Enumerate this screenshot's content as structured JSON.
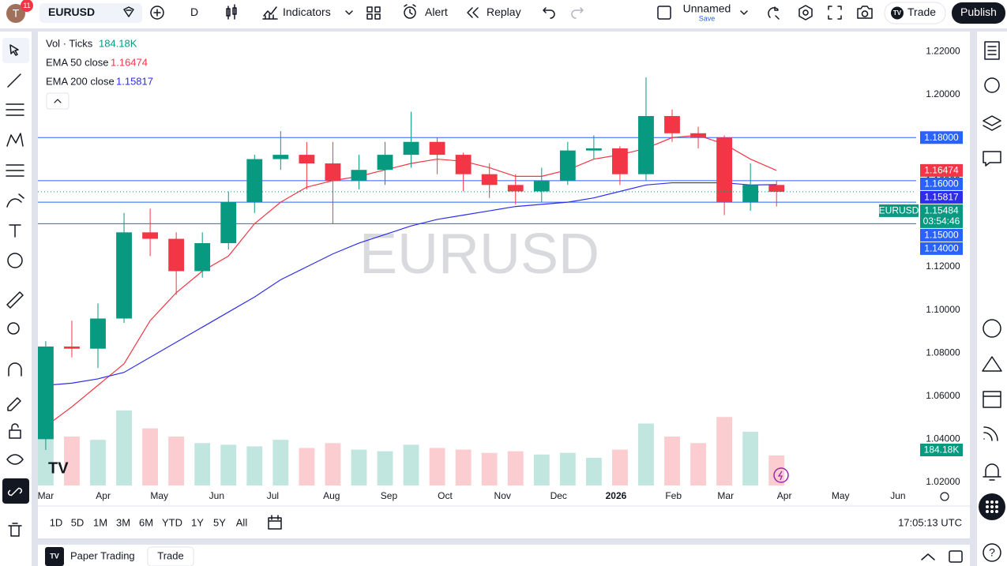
{
  "toolbar": {
    "avatar": "T",
    "notifications": "11",
    "symbol": "EURUSD",
    "interval": "D",
    "indicators": "Indicators",
    "alert": "Alert",
    "replay": "Replay",
    "layout_name": "Unnamed",
    "save": "Save",
    "trade": "Trade",
    "publish": "Publish"
  },
  "chart_data": {
    "type": "candlestick",
    "watermark": "EURUSD",
    "xlim": [
      -0.6,
      66.7
    ],
    "xticks": [
      {
        "value": 0,
        "label": "Mar"
      },
      {
        "value": 4.4,
        "label": "Apr"
      },
      {
        "value": 8.7,
        "label": "May"
      },
      {
        "value": 13.1,
        "label": "Jun"
      },
      {
        "value": 17.4,
        "label": "Jul"
      },
      {
        "value": 21.9,
        "label": "Aug"
      },
      {
        "value": 26.3,
        "label": "Sep"
      },
      {
        "value": 30.6,
        "label": "Oct"
      },
      {
        "value": 35,
        "label": "Nov"
      },
      {
        "value": 39.3,
        "label": "Dec"
      },
      {
        "value": 43.7,
        "label": "2026"
      },
      {
        "value": 48.1,
        "label": "Feb"
      },
      {
        "value": 52.1,
        "label": "Mar"
      },
      {
        "value": 56.6,
        "label": "Apr"
      },
      {
        "value": 60.9,
        "label": "May"
      },
      {
        "value": 65.3,
        "label": "Jun"
      }
    ],
    "ylim": [
      1.0185,
      1.2292
    ],
    "yticks": [
      {
        "value": 1.02,
        "label": "1.02000"
      },
      {
        "value": 1.04,
        "label": "1.04000"
      },
      {
        "value": 1.06,
        "label": "1.06000"
      },
      {
        "value": 1.08,
        "label": "1.08000"
      },
      {
        "value": 1.1,
        "label": "1.10000"
      },
      {
        "value": 1.12,
        "label": "1.12000"
      },
      {
        "value": 1.14,
        "label": "1.14000"
      },
      {
        "value": 1.16,
        "label": "1.16000"
      },
      {
        "value": 1.18,
        "label": "1.18000"
      },
      {
        "value": 1.2,
        "label": "1.20000"
      },
      {
        "value": 1.22,
        "label": "1.22000"
      }
    ],
    "x": [
      0,
      2,
      4,
      6,
      8,
      10,
      12,
      14,
      16,
      18,
      20,
      22,
      24,
      26,
      28,
      30,
      32,
      34,
      36,
      38,
      40,
      42,
      44,
      46,
      48,
      50,
      52,
      54,
      56
    ],
    "open": [
      1.04,
      1.083,
      1.082,
      1.096,
      1.136,
      1.133,
      1.118,
      1.131,
      1.15,
      1.17,
      1.172,
      1.168,
      1.16,
      1.165,
      1.172,
      1.178,
      1.172,
      1.163,
      1.158,
      1.155,
      1.16,
      1.174,
      1.175,
      1.163,
      1.19,
      1.182,
      1.18,
      1.15,
      1.158
    ],
    "high": [
      1.0855,
      1.095,
      1.103,
      1.145,
      1.147,
      1.136,
      1.136,
      1.155,
      1.172,
      1.183,
      1.178,
      1.178,
      1.172,
      1.178,
      1.192,
      1.18,
      1.173,
      1.168,
      1.163,
      1.166,
      1.178,
      1.181,
      1.176,
      1.208,
      1.193,
      1.185,
      1.181,
      1.168,
      1.16
    ],
    "low": [
      1.035,
      1.078,
      1.073,
      1.094,
      1.125,
      1.107,
      1.115,
      1.128,
      1.145,
      1.165,
      1.156,
      1.14,
      1.156,
      1.158,
      1.166,
      1.163,
      1.155,
      1.152,
      1.149,
      1.15,
      1.158,
      1.17,
      1.158,
      1.16,
      1.178,
      1.175,
      1.144,
      1.146,
      1.148
    ],
    "close": [
      1.083,
      1.082,
      1.096,
      1.136,
      1.133,
      1.118,
      1.131,
      1.15,
      1.17,
      1.172,
      1.168,
      1.16,
      1.165,
      1.172,
      1.178,
      1.172,
      1.163,
      1.158,
      1.155,
      1.16,
      1.174,
      1.175,
      1.163,
      1.19,
      1.182,
      1.18,
      1.15,
      1.158,
      1.15484
    ],
    "up_color": "#089981",
    "down_color": "#f23645",
    "countdown": "03:54:46",
    "volume": {
      "name": "Vol · Ticks",
      "values": [
        420000,
        300000,
        280000,
        460000,
        350000,
        300000,
        260000,
        250000,
        240000,
        280000,
        230000,
        260000,
        220000,
        210000,
        250000,
        230000,
        220000,
        200000,
        210000,
        190000,
        200000,
        170000,
        220000,
        380000,
        300000,
        260000,
        420000,
        330000,
        184180
      ],
      "last_label": "184.18K"
    },
    "ema": [
      {
        "name": "EMA 50 close",
        "color": "#f23645",
        "values": [
          1.046,
          1.055,
          1.065,
          1.075,
          1.095,
          1.108,
          1.118,
          1.125,
          1.14,
          1.15,
          1.157,
          1.16,
          1.162,
          1.165,
          1.168,
          1.17,
          1.169,
          1.166,
          1.162,
          1.162,
          1.165,
          1.17,
          1.172,
          1.175,
          1.18,
          1.181,
          1.177,
          1.17,
          1.16474
        ]
      },
      {
        "name": "EMA 200 close",
        "color": "#2e2ee8",
        "values": [
          1.065,
          1.066,
          1.068,
          1.071,
          1.078,
          1.085,
          1.092,
          1.099,
          1.106,
          1.114,
          1.12,
          1.126,
          1.131,
          1.135,
          1.139,
          1.142,
          1.144,
          1.146,
          1.148,
          1.149,
          1.15,
          1.152,
          1.155,
          1.158,
          1.159,
          1.159,
          1.159,
          1.158,
          1.15817
        ]
      }
    ],
    "levels": [
      {
        "value": 1.18,
        "label": "1.18000"
      },
      {
        "value": 1.16,
        "label": "1.16000"
      },
      {
        "value": 1.15,
        "label": "1.15000"
      },
      {
        "value": 1.14,
        "label": "1.14000"
      }
    ],
    "level_color": "#2962ff"
  },
  "bottom_bar": {
    "ranges": [
      "1D",
      "5D",
      "1M",
      "3M",
      "6M",
      "YTD",
      "1Y",
      "5Y",
      "All"
    ],
    "clock": "17:05:13 UTC",
    "paper_trading": "Paper Trading",
    "trade": "Trade"
  }
}
